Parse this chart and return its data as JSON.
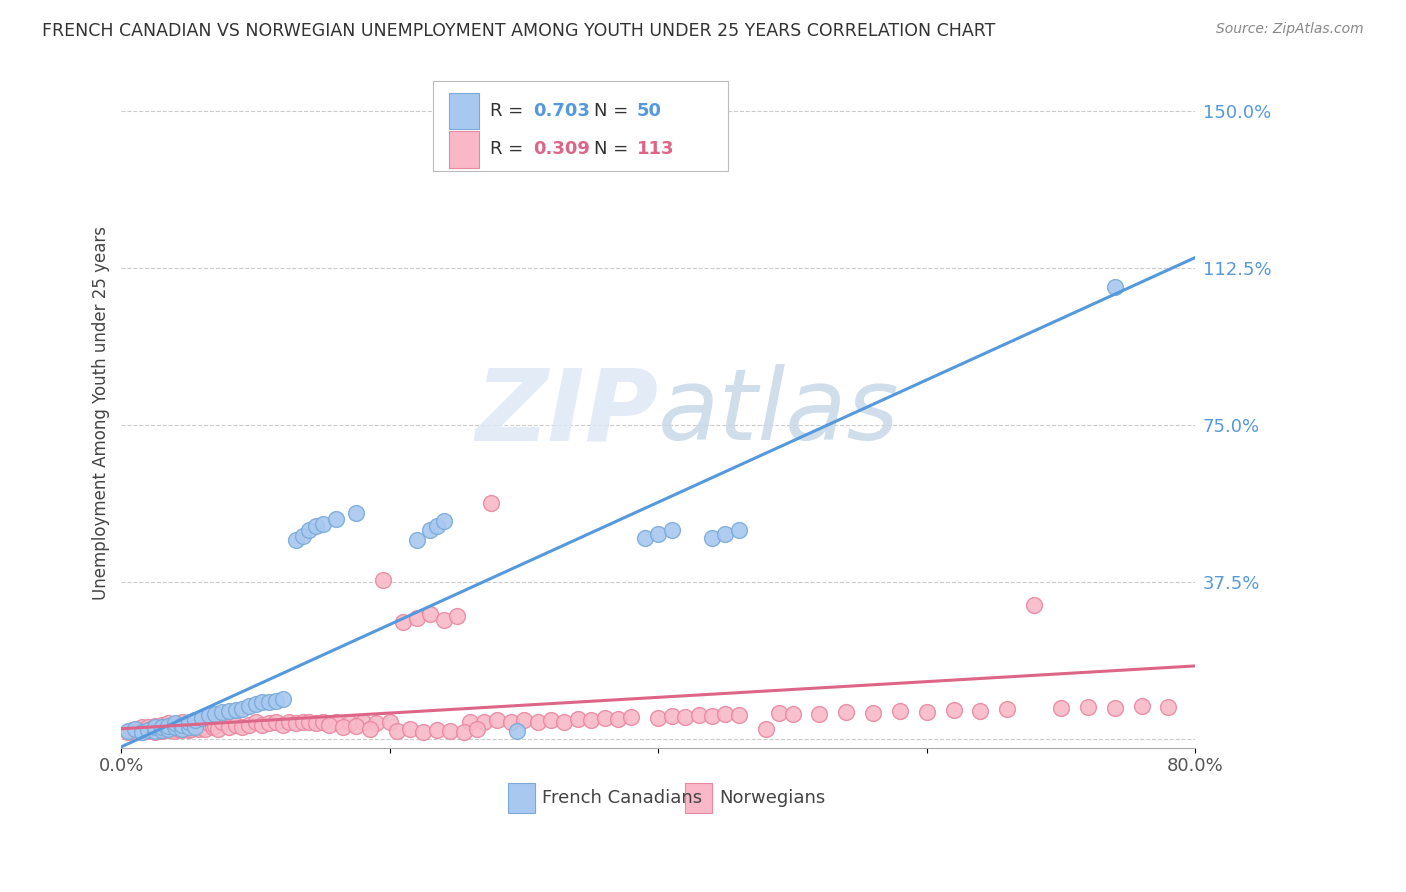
{
  "title": "FRENCH CANADIAN VS NORWEGIAN UNEMPLOYMENT AMONG YOUTH UNDER 25 YEARS CORRELATION CHART",
  "source": "Source: ZipAtlas.com",
  "ylabel": "Unemployment Among Youth under 25 years",
  "xlim": [
    0.0,
    0.8
  ],
  "ylim": [
    -0.02,
    1.58
  ],
  "blue_R": "0.703",
  "blue_N": "50",
  "pink_R": "0.309",
  "pink_N": "113",
  "blue_color": "#a8c8f0",
  "blue_edge": "#7aaad8",
  "pink_color": "#f8b8c8",
  "pink_edge": "#e888a0",
  "blue_line_color": "#5599dd",
  "pink_line_color": "#dd6688",
  "legend_label_blue": "French Canadians",
  "legend_label_pink": "Norwegians",
  "watermark_zip": "ZIP",
  "watermark_atlas": "atlas",
  "y_ticks": [
    0.0,
    0.375,
    0.75,
    1.125,
    1.5
  ],
  "y_tick_labels": [
    "",
    "37.5%",
    "75.0%",
    "112.5%",
    "150.0%"
  ],
  "x_ticks": [
    0.0,
    0.2,
    0.4,
    0.6,
    0.8
  ],
  "x_tick_labels": [
    "0.0%",
    "",
    "",
    "",
    "80.0%"
  ],
  "blue_line_x0": 0.0,
  "blue_line_y0": -0.018,
  "blue_line_x1": 0.8,
  "blue_line_y1": 1.15,
  "pink_line_x0": 0.0,
  "pink_line_y0": 0.025,
  "pink_line_x1": 0.8,
  "pink_line_y1": 0.175,
  "blue_x": [
    0.005,
    0.01,
    0.015,
    0.02,
    0.025,
    0.025,
    0.03,
    0.03,
    0.035,
    0.035,
    0.04,
    0.04,
    0.045,
    0.045,
    0.05,
    0.05,
    0.055,
    0.055,
    0.06,
    0.065,
    0.07,
    0.075,
    0.08,
    0.085,
    0.09,
    0.095,
    0.1,
    0.105,
    0.11,
    0.115,
    0.12,
    0.13,
    0.135,
    0.14,
    0.145,
    0.15,
    0.16,
    0.175,
    0.22,
    0.23,
    0.235,
    0.24,
    0.39,
    0.4,
    0.41,
    0.44,
    0.45,
    0.46,
    0.74,
    0.295
  ],
  "blue_y": [
    0.02,
    0.025,
    0.018,
    0.022,
    0.02,
    0.03,
    0.022,
    0.028,
    0.025,
    0.032,
    0.028,
    0.038,
    0.025,
    0.035,
    0.028,
    0.04,
    0.03,
    0.045,
    0.05,
    0.058,
    0.06,
    0.065,
    0.068,
    0.07,
    0.072,
    0.08,
    0.085,
    0.088,
    0.09,
    0.092,
    0.095,
    0.475,
    0.485,
    0.5,
    0.51,
    0.515,
    0.525,
    0.54,
    0.475,
    0.5,
    0.51,
    0.52,
    0.48,
    0.49,
    0.5,
    0.48,
    0.49,
    0.5,
    1.08,
    0.02
  ],
  "pink_x": [
    0.005,
    0.008,
    0.01,
    0.012,
    0.015,
    0.015,
    0.018,
    0.02,
    0.02,
    0.022,
    0.025,
    0.025,
    0.028,
    0.03,
    0.03,
    0.032,
    0.035,
    0.035,
    0.038,
    0.04,
    0.04,
    0.042,
    0.045,
    0.045,
    0.048,
    0.05,
    0.05,
    0.052,
    0.055,
    0.055,
    0.058,
    0.06,
    0.062,
    0.065,
    0.068,
    0.07,
    0.072,
    0.075,
    0.08,
    0.085,
    0.09,
    0.095,
    0.1,
    0.105,
    0.11,
    0.115,
    0.12,
    0.125,
    0.13,
    0.135,
    0.14,
    0.145,
    0.15,
    0.16,
    0.17,
    0.18,
    0.19,
    0.2,
    0.21,
    0.22,
    0.23,
    0.24,
    0.25,
    0.26,
    0.27,
    0.28,
    0.29,
    0.3,
    0.31,
    0.32,
    0.33,
    0.34,
    0.35,
    0.36,
    0.37,
    0.38,
    0.4,
    0.41,
    0.42,
    0.43,
    0.44,
    0.45,
    0.46,
    0.48,
    0.49,
    0.5,
    0.52,
    0.54,
    0.56,
    0.58,
    0.6,
    0.62,
    0.64,
    0.66,
    0.68,
    0.7,
    0.72,
    0.74,
    0.76,
    0.78,
    0.155,
    0.165,
    0.175,
    0.185,
    0.195,
    0.205,
    0.215,
    0.225,
    0.235,
    0.245,
    0.255,
    0.265,
    0.275
  ],
  "pink_y": [
    0.018,
    0.022,
    0.02,
    0.025,
    0.018,
    0.028,
    0.022,
    0.02,
    0.03,
    0.025,
    0.018,
    0.032,
    0.025,
    0.02,
    0.035,
    0.025,
    0.022,
    0.038,
    0.025,
    0.02,
    0.035,
    0.025,
    0.022,
    0.04,
    0.025,
    0.022,
    0.038,
    0.025,
    0.028,
    0.045,
    0.025,
    0.03,
    0.025,
    0.038,
    0.028,
    0.032,
    0.025,
    0.04,
    0.03,
    0.035,
    0.028,
    0.035,
    0.04,
    0.035,
    0.038,
    0.04,
    0.035,
    0.04,
    0.038,
    0.042,
    0.04,
    0.038,
    0.042,
    0.04,
    0.038,
    0.04,
    0.038,
    0.04,
    0.28,
    0.29,
    0.3,
    0.285,
    0.295,
    0.04,
    0.042,
    0.045,
    0.04,
    0.045,
    0.04,
    0.045,
    0.042,
    0.048,
    0.045,
    0.05,
    0.048,
    0.052,
    0.05,
    0.055,
    0.052,
    0.058,
    0.055,
    0.06,
    0.058,
    0.025,
    0.062,
    0.06,
    0.06,
    0.065,
    0.062,
    0.068,
    0.065,
    0.07,
    0.068,
    0.072,
    0.32,
    0.075,
    0.078,
    0.075,
    0.08,
    0.078,
    0.035,
    0.028,
    0.032,
    0.025,
    0.38,
    0.02,
    0.025,
    0.018,
    0.022,
    0.02,
    0.018,
    0.025,
    0.565
  ]
}
